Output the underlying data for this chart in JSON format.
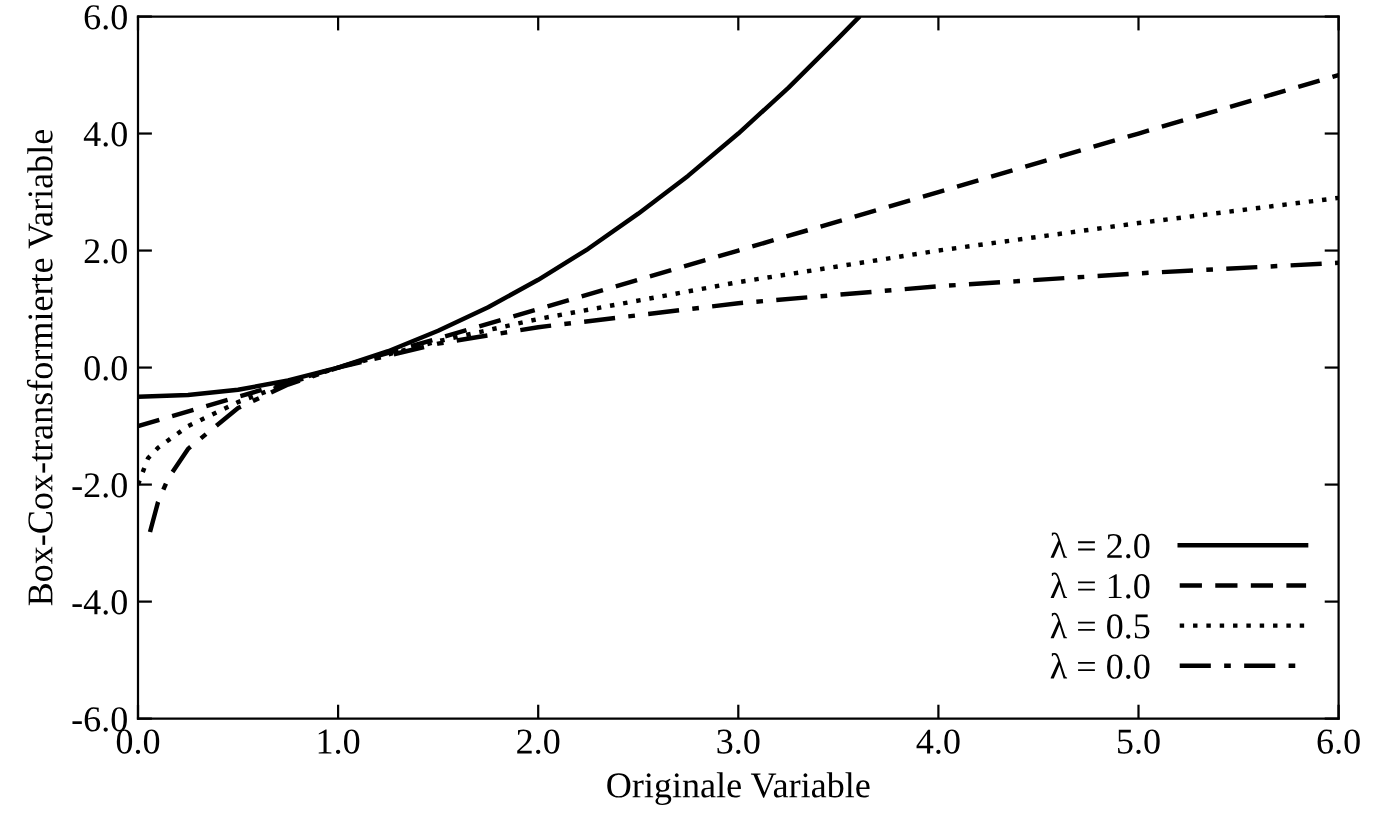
{
  "chart_data": {
    "type": "line",
    "xlabel": "Originale Variable",
    "ylabel": "Box-Cox-transformierte Variable",
    "xlim": [
      0,
      6
    ],
    "ylim": [
      -6,
      6
    ],
    "xticks": [
      {
        "value": 0,
        "label": "0.0"
      },
      {
        "value": 1,
        "label": "1.0"
      },
      {
        "value": 2,
        "label": "2.0"
      },
      {
        "value": 3,
        "label": "3.0"
      },
      {
        "value": 4,
        "label": "4.0"
      },
      {
        "value": 5,
        "label": "5.0"
      },
      {
        "value": 6,
        "label": "6.0"
      }
    ],
    "yticks": [
      {
        "value": -6,
        "label": "-6.0"
      },
      {
        "value": -4,
        "label": "-4.0"
      },
      {
        "value": -2,
        "label": "-2.0"
      },
      {
        "value": 0,
        "label": "0.0"
      },
      {
        "value": 2,
        "label": "2.0"
      },
      {
        "value": 4,
        "label": "4.0"
      },
      {
        "value": 6,
        "label": "6.0"
      }
    ],
    "grid": false,
    "legend": "bottom right",
    "series": [
      {
        "name": "λ = 2.0",
        "color": "#000000",
        "line_style": "solid",
        "x": [
          0,
          0.25,
          0.5,
          0.75,
          1,
          1.25,
          1.5,
          1.75,
          2,
          2.25,
          2.5,
          2.75,
          3,
          3.25,
          3.5,
          3.6
        ],
        "values": [
          -0.5,
          -0.47,
          -0.38,
          -0.22,
          0,
          0.28,
          0.63,
          1.03,
          1.5,
          2.03,
          2.63,
          3.28,
          4.0,
          4.78,
          5.63,
          5.98
        ]
      },
      {
        "name": "λ = 1.0",
        "color": "#000000",
        "line_style": "dashed",
        "x": [
          0,
          1,
          2,
          3,
          4,
          5,
          6
        ],
        "values": [
          -1,
          0,
          1,
          2,
          3,
          4,
          5
        ]
      },
      {
        "name": "λ = 0.5",
        "color": "#000000",
        "line_style": "dotted",
        "x": [
          0,
          0.05,
          0.1,
          0.25,
          0.5,
          0.75,
          1,
          1.5,
          2,
          3,
          4,
          5,
          6
        ],
        "values": [
          -2,
          -1.55,
          -1.37,
          -1,
          -0.59,
          -0.27,
          0,
          0.45,
          0.83,
          1.46,
          2,
          2.47,
          2.9
        ]
      },
      {
        "name": "λ = 0.0",
        "color": "#000000",
        "line_style": "dashdot",
        "x": [
          0.06,
          0.1,
          0.15,
          0.25,
          0.5,
          0.75,
          1,
          1.5,
          2,
          3,
          4,
          5,
          6
        ],
        "values": [
          -2.81,
          -2.3,
          -1.9,
          -1.39,
          -0.69,
          -0.29,
          0,
          0.41,
          0.69,
          1.1,
          1.39,
          1.61,
          1.79
        ]
      }
    ]
  }
}
